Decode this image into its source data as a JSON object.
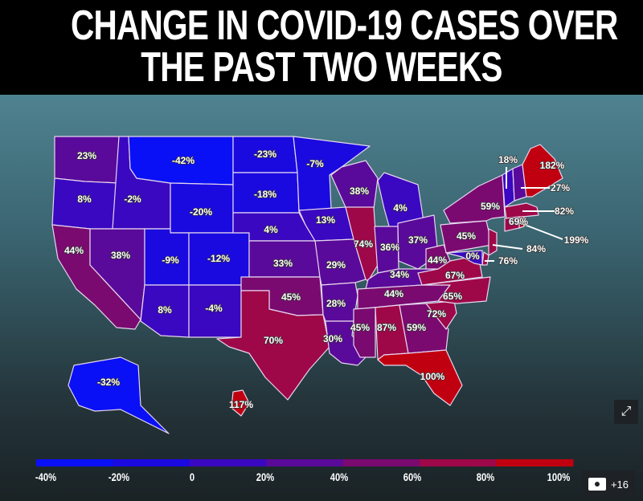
{
  "title": {
    "line1": "CHANGE IN COVID-19 CASES OVER",
    "line2": "THE PAST TWO WEEKS"
  },
  "scale": {
    "min_color": "#0a10f5",
    "mid_color": "#5a0a8a",
    "max_color": "#c4000e",
    "min": -40,
    "max": 100
  },
  "states": [
    {
      "id": "WA",
      "value": 23,
      "label": "23%"
    },
    {
      "id": "OR",
      "value": 8,
      "label": "8%"
    },
    {
      "id": "CA",
      "value": 44,
      "label": "44%"
    },
    {
      "id": "ID",
      "value": -2,
      "label": "-2%"
    },
    {
      "id": "NV",
      "value": 38,
      "label": "38%"
    },
    {
      "id": "MT",
      "value": -42,
      "label": "-42%"
    },
    {
      "id": "WY",
      "value": -20,
      "label": "-20%"
    },
    {
      "id": "UT",
      "value": -9,
      "label": "-9%"
    },
    {
      "id": "CO",
      "value": -12,
      "label": "-12%"
    },
    {
      "id": "AZ",
      "value": 8,
      "label": "8%"
    },
    {
      "id": "NM",
      "value": -4,
      "label": "-4%"
    },
    {
      "id": "ND",
      "value": -23,
      "label": "-23%"
    },
    {
      "id": "SD",
      "value": -18,
      "label": "-18%"
    },
    {
      "id": "NE",
      "value": 4,
      "label": "4%"
    },
    {
      "id": "KS",
      "value": 33,
      "label": "33%"
    },
    {
      "id": "OK",
      "value": 45,
      "label": "45%"
    },
    {
      "id": "TX",
      "value": 70,
      "label": "70%"
    },
    {
      "id": "MN",
      "value": -7,
      "label": "-7%"
    },
    {
      "id": "IA",
      "value": 13,
      "label": "13%"
    },
    {
      "id": "MO",
      "value": 29,
      "label": "29%"
    },
    {
      "id": "AR",
      "value": 28,
      "label": "28%"
    },
    {
      "id": "LA",
      "value": 30,
      "label": "30%"
    },
    {
      "id": "WI",
      "value": 38,
      "label": "38%"
    },
    {
      "id": "IL",
      "value": 74,
      "label": "74%"
    },
    {
      "id": "MI",
      "value": 4,
      "label": "4%"
    },
    {
      "id": "IN",
      "value": 36,
      "label": "36%"
    },
    {
      "id": "OH",
      "value": 37,
      "label": "37%"
    },
    {
      "id": "KY",
      "value": 34,
      "label": "34%"
    },
    {
      "id": "TN",
      "value": 44,
      "label": "44%"
    },
    {
      "id": "MS",
      "value": 45,
      "label": "45%"
    },
    {
      "id": "AL",
      "value": 87,
      "label": "87%"
    },
    {
      "id": "GA",
      "value": 59,
      "label": "59%"
    },
    {
      "id": "FL",
      "value": 100,
      "label": "100%"
    },
    {
      "id": "SC",
      "value": 72,
      "label": "72%"
    },
    {
      "id": "NC",
      "value": 65,
      "label": "65%"
    },
    {
      "id": "VA",
      "value": 67,
      "label": "67%"
    },
    {
      "id": "WV",
      "value": 44,
      "label": "44%"
    },
    {
      "id": "PA",
      "value": 45,
      "label": "45%"
    },
    {
      "id": "NY",
      "value": 59,
      "label": "59%"
    },
    {
      "id": "MD",
      "value": 0,
      "label": "0%"
    },
    {
      "id": "NJ",
      "value": 84,
      "label": "84%"
    },
    {
      "id": "DE",
      "value": 76,
      "label": "76%"
    },
    {
      "id": "VT",
      "value": 18,
      "label": "18%"
    },
    {
      "id": "NH",
      "value": 27,
      "label": "27%"
    },
    {
      "id": "ME",
      "value": 182,
      "label": "182%"
    },
    {
      "id": "MA",
      "value": 82,
      "label": "82%"
    },
    {
      "id": "CT",
      "value": 69,
      "label": "69%"
    },
    {
      "id": "RI",
      "value": 199,
      "label": "199%"
    },
    {
      "id": "AK",
      "value": -32,
      "label": "-32%"
    },
    {
      "id": "HI",
      "value": 117,
      "label": "117%"
    }
  ],
  "legend": {
    "colors": [
      "#0a10f5",
      "#1a0ae0",
      "#3a08c0",
      "#5a0a9a",
      "#7a0a70",
      "#9e0848",
      "#c00010"
    ],
    "labels": [
      "-40%",
      "-20%",
      "0",
      "20%",
      "40%",
      "60%",
      "80%",
      "100%"
    ]
  },
  "controls": {
    "share_icon": "share-icon",
    "gallery_icon": "camera-icon",
    "gallery_count": "+16"
  }
}
